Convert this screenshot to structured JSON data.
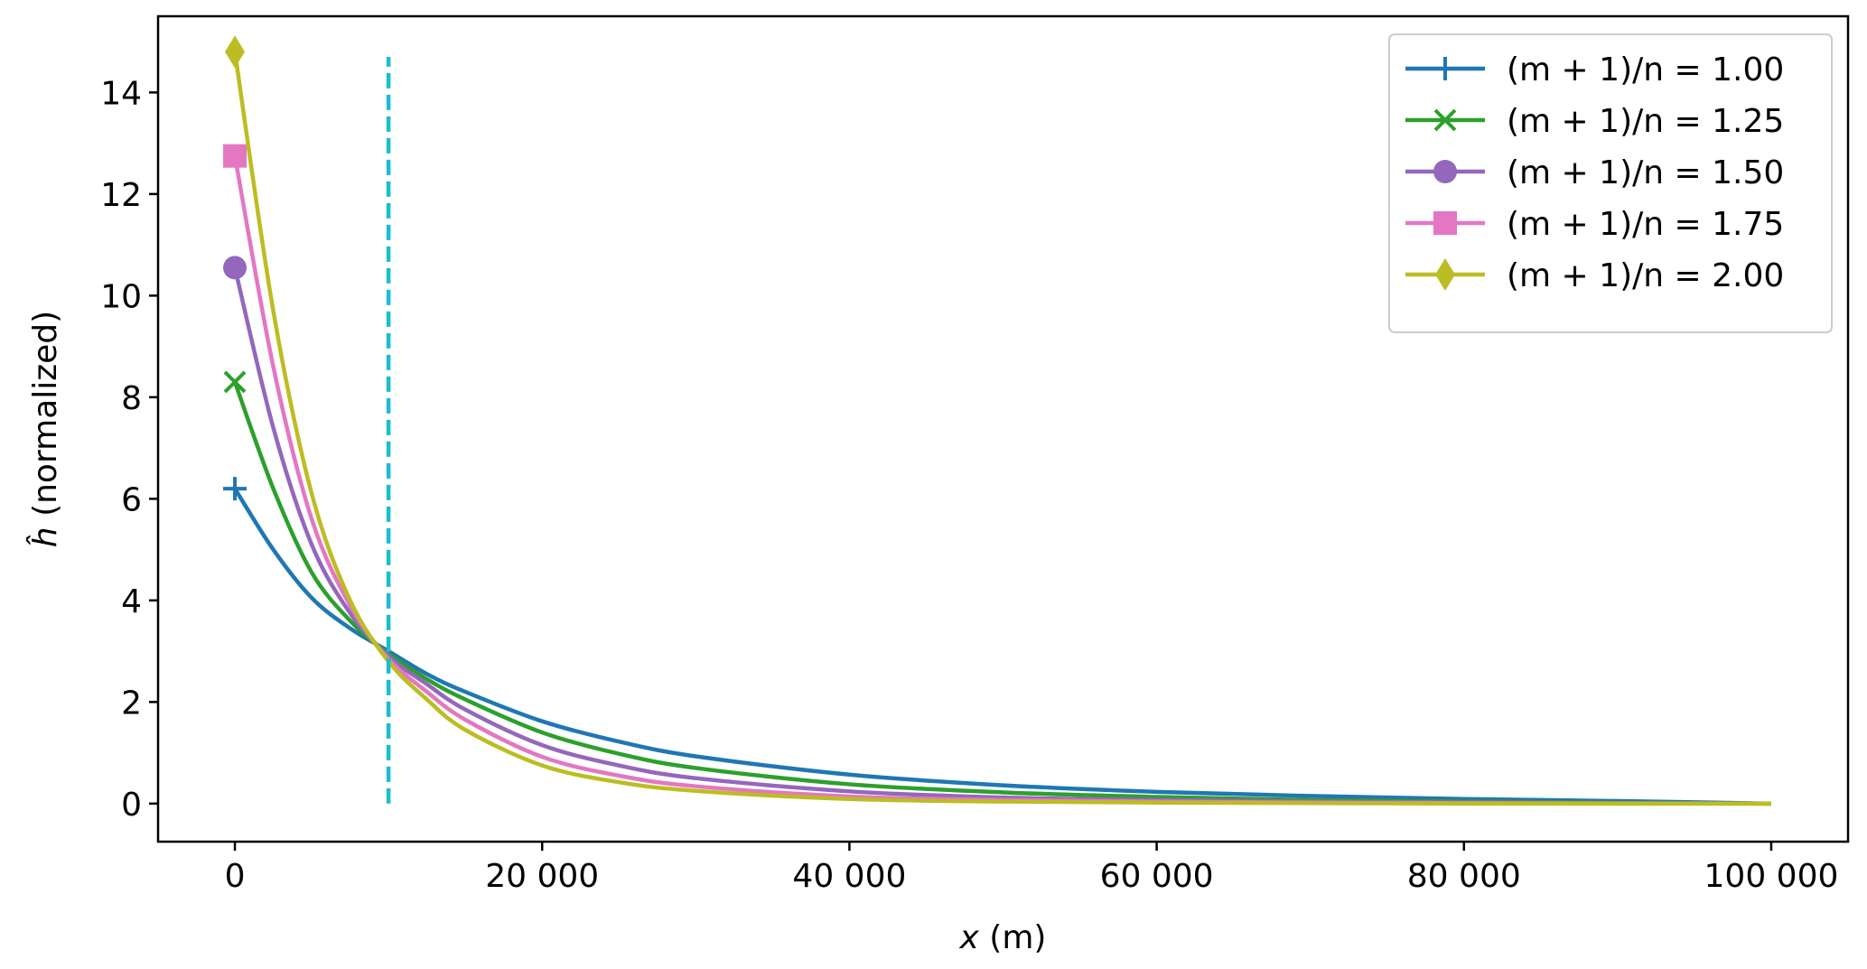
{
  "chart_data": {
    "type": "line",
    "xlabel": "x (m)",
    "xlabel_var": "x",
    "xlabel_unit": " (m)",
    "ylabel": "ĥ (normalized)",
    "ylabel_var": "ĥ",
    "ylabel_rest": " (normalized)",
    "xlim": [
      -5000,
      105000
    ],
    "ylim": [
      -0.75,
      15.5
    ],
    "x_ticks": [
      0,
      20000,
      40000,
      60000,
      80000,
      100000
    ],
    "x_tick_labels": [
      "0",
      "20 000",
      "40 000",
      "60 000",
      "80 000",
      "100 000"
    ],
    "y_ticks": [
      0,
      2,
      4,
      6,
      8,
      10,
      12,
      14
    ],
    "y_tick_labels": [
      "0",
      "2",
      "4",
      "6",
      "8",
      "10",
      "12",
      "14"
    ],
    "grid": false,
    "legend_position": "top-right",
    "vline": {
      "x": 10000,
      "y_range": [
        0,
        14.7
      ],
      "color": "#17becf",
      "style": "dashed"
    },
    "x": [
      0,
      2500,
      5000,
      7500,
      10000,
      12500,
      15000,
      20000,
      25000,
      30000,
      40000,
      50000,
      60000,
      70000,
      80000,
      90000,
      100000
    ],
    "series": [
      {
        "name": "(m + 1)/n = 1.00",
        "color": "#1f77b4",
        "marker": "plus",
        "values": [
          6.2,
          5.0,
          4.05,
          3.45,
          3.0,
          2.55,
          2.2,
          1.62,
          1.22,
          0.93,
          0.57,
          0.36,
          0.23,
          0.15,
          0.09,
          0.05,
          0.0
        ]
      },
      {
        "name": "(m + 1)/n = 1.25",
        "color": "#2ca02c",
        "marker": "x",
        "values": [
          8.3,
          6.2,
          4.55,
          3.6,
          2.95,
          2.45,
          2.05,
          1.4,
          0.98,
          0.7,
          0.38,
          0.22,
          0.13,
          0.07,
          0.04,
          0.02,
          0.0
        ]
      },
      {
        "name": "(m + 1)/n = 1.50",
        "color": "#9467bd",
        "marker": "circle",
        "values": [
          10.55,
          7.4,
          5.1,
          3.75,
          2.9,
          2.35,
          1.85,
          1.15,
          0.75,
          0.5,
          0.24,
          0.12,
          0.07,
          0.04,
          0.02,
          0.01,
          0.0
        ]
      },
      {
        "name": "(m + 1)/n = 1.75",
        "color": "#e377c2",
        "marker": "square",
        "values": [
          12.75,
          8.6,
          5.6,
          3.9,
          2.85,
          2.2,
          1.65,
          0.92,
          0.55,
          0.34,
          0.14,
          0.07,
          0.04,
          0.02,
          0.01,
          0.0,
          0.0
        ]
      },
      {
        "name": "(m + 1)/n = 2.00",
        "color": "#bcbd22",
        "marker": "diamond",
        "values": [
          14.8,
          9.7,
          6.1,
          4.0,
          2.8,
          2.05,
          1.45,
          0.75,
          0.42,
          0.25,
          0.09,
          0.04,
          0.02,
          0.01,
          0.0,
          0.0,
          0.0
        ]
      }
    ]
  }
}
